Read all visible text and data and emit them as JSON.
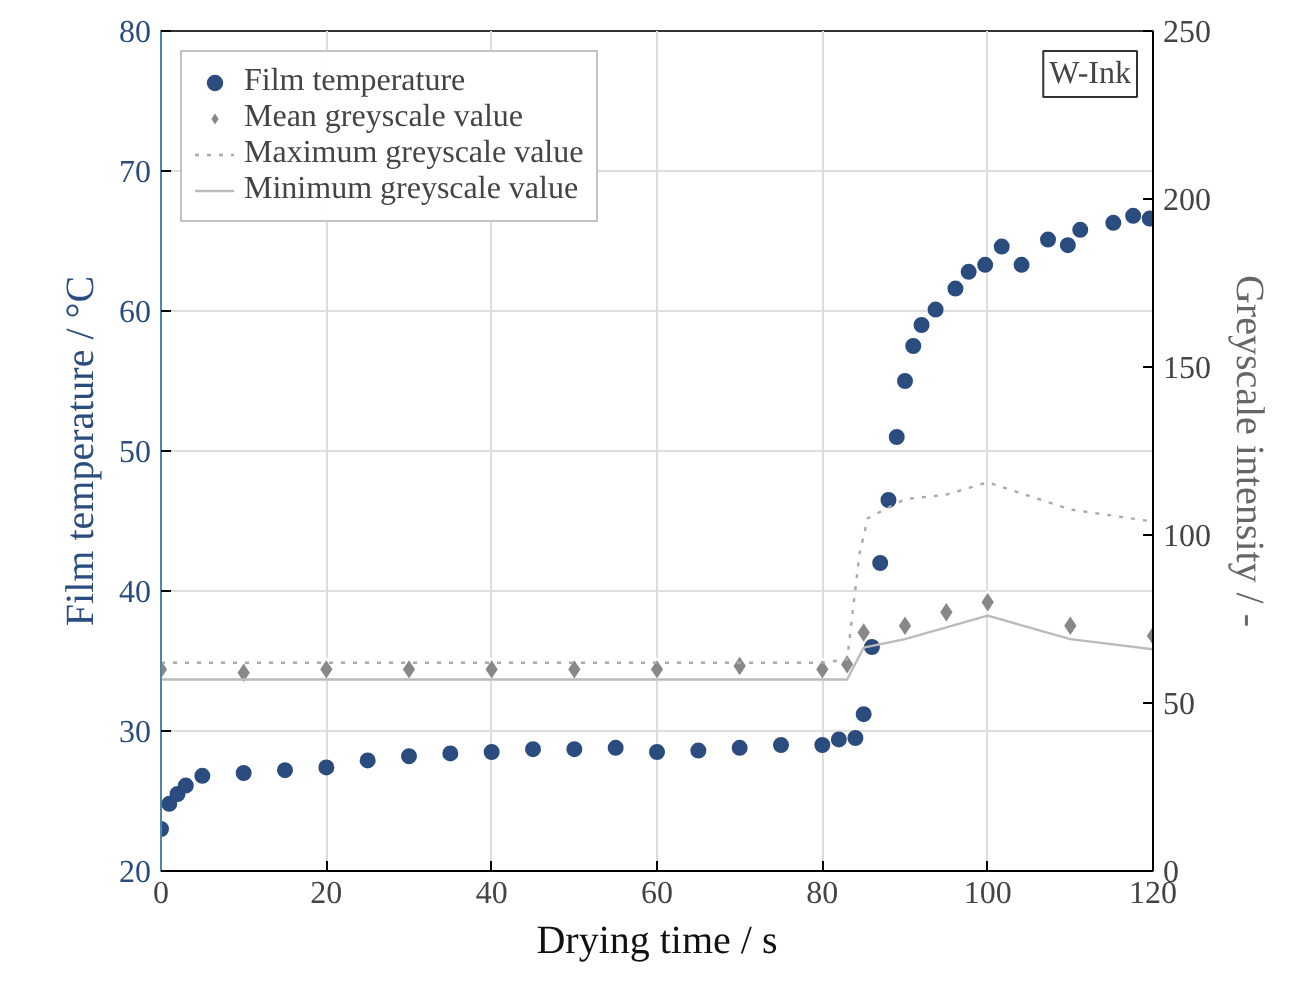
{
  "chart_data": {
    "type": "scatter",
    "xlabel": "Drying time / s",
    "ylabel": "Film temperature / °C",
    "y2label": "Greyscale intensity / -",
    "xlim": [
      0,
      120
    ],
    "xticks": [
      0,
      20,
      40,
      60,
      80,
      100,
      120
    ],
    "ylim": [
      20,
      80
    ],
    "yticks": [
      20,
      30,
      40,
      50,
      60,
      70,
      80
    ],
    "y2lim": [
      0,
      250
    ],
    "y2ticks": [
      0,
      50,
      100,
      150,
      200,
      250
    ],
    "grid": true,
    "legend": "top left",
    "annotations": [
      "W-Ink"
    ],
    "series": [
      {
        "name": "Film temperature",
        "marker": "circle",
        "color": "#2b4c7e",
        "x": [
          0,
          1,
          2,
          3,
          5,
          10,
          15,
          20,
          25,
          30,
          35,
          40,
          45,
          50,
          55,
          60,
          65,
          70,
          75,
          80,
          82,
          84,
          85,
          86,
          87,
          88,
          89,
          90,
          91,
          92,
          93.7,
          96.1,
          97.7,
          99.7,
          101.7,
          104.1,
          107.3,
          109.7,
          111.2,
          115.2,
          117.6,
          119.6
        ],
        "values": [
          23.0,
          24.8,
          25.5,
          26.1,
          26.8,
          27.0,
          27.2,
          27.4,
          27.9,
          28.2,
          28.4,
          28.5,
          28.7,
          28.7,
          28.8,
          28.5,
          28.6,
          28.8,
          29.0,
          29.0,
          29.4,
          29.5,
          31.2,
          36.0,
          42.0,
          46.5,
          51.0,
          55.0,
          57.5,
          59.0,
          60.1,
          61.6,
          62.8,
          63.3,
          64.6,
          63.3,
          65.1,
          64.7,
          65.8,
          66.3,
          66.8,
          66.6
        ]
      },
      {
        "name": "Mean greyscale value",
        "type": "scatter",
        "marker": "diamond",
        "axis": "y2",
        "color": "#888888",
        "x": [
          0,
          10,
          20,
          30,
          40,
          50,
          60,
          70,
          80,
          83,
          85,
          90,
          95,
          100,
          110,
          120
        ],
        "values": [
          60,
          59,
          60,
          60,
          60,
          60,
          60,
          61,
          60,
          61.5,
          71,
          73,
          77,
          80,
          73,
          70
        ]
      },
      {
        "name": "Maximum greyscale value",
        "type": "line",
        "line_style": "dotted",
        "axis": "y2",
        "color": "#aaaaaa",
        "x": [
          0,
          80,
          83,
          84.5,
          85.5,
          90,
          95,
          100,
          110,
          120
        ],
        "values": [
          62,
          62,
          63,
          94.5,
          105,
          110.7,
          112,
          115.7,
          107.6,
          104
        ]
      },
      {
        "name": "Minimum greyscale value",
        "type": "line",
        "line_style": "solid",
        "axis": "y2",
        "color": "#bbbbbb",
        "x": [
          0,
          83,
          85,
          90,
          100,
          110,
          120
        ],
        "values": [
          57,
          57,
          66.5,
          69,
          76,
          69,
          66
        ]
      }
    ]
  }
}
